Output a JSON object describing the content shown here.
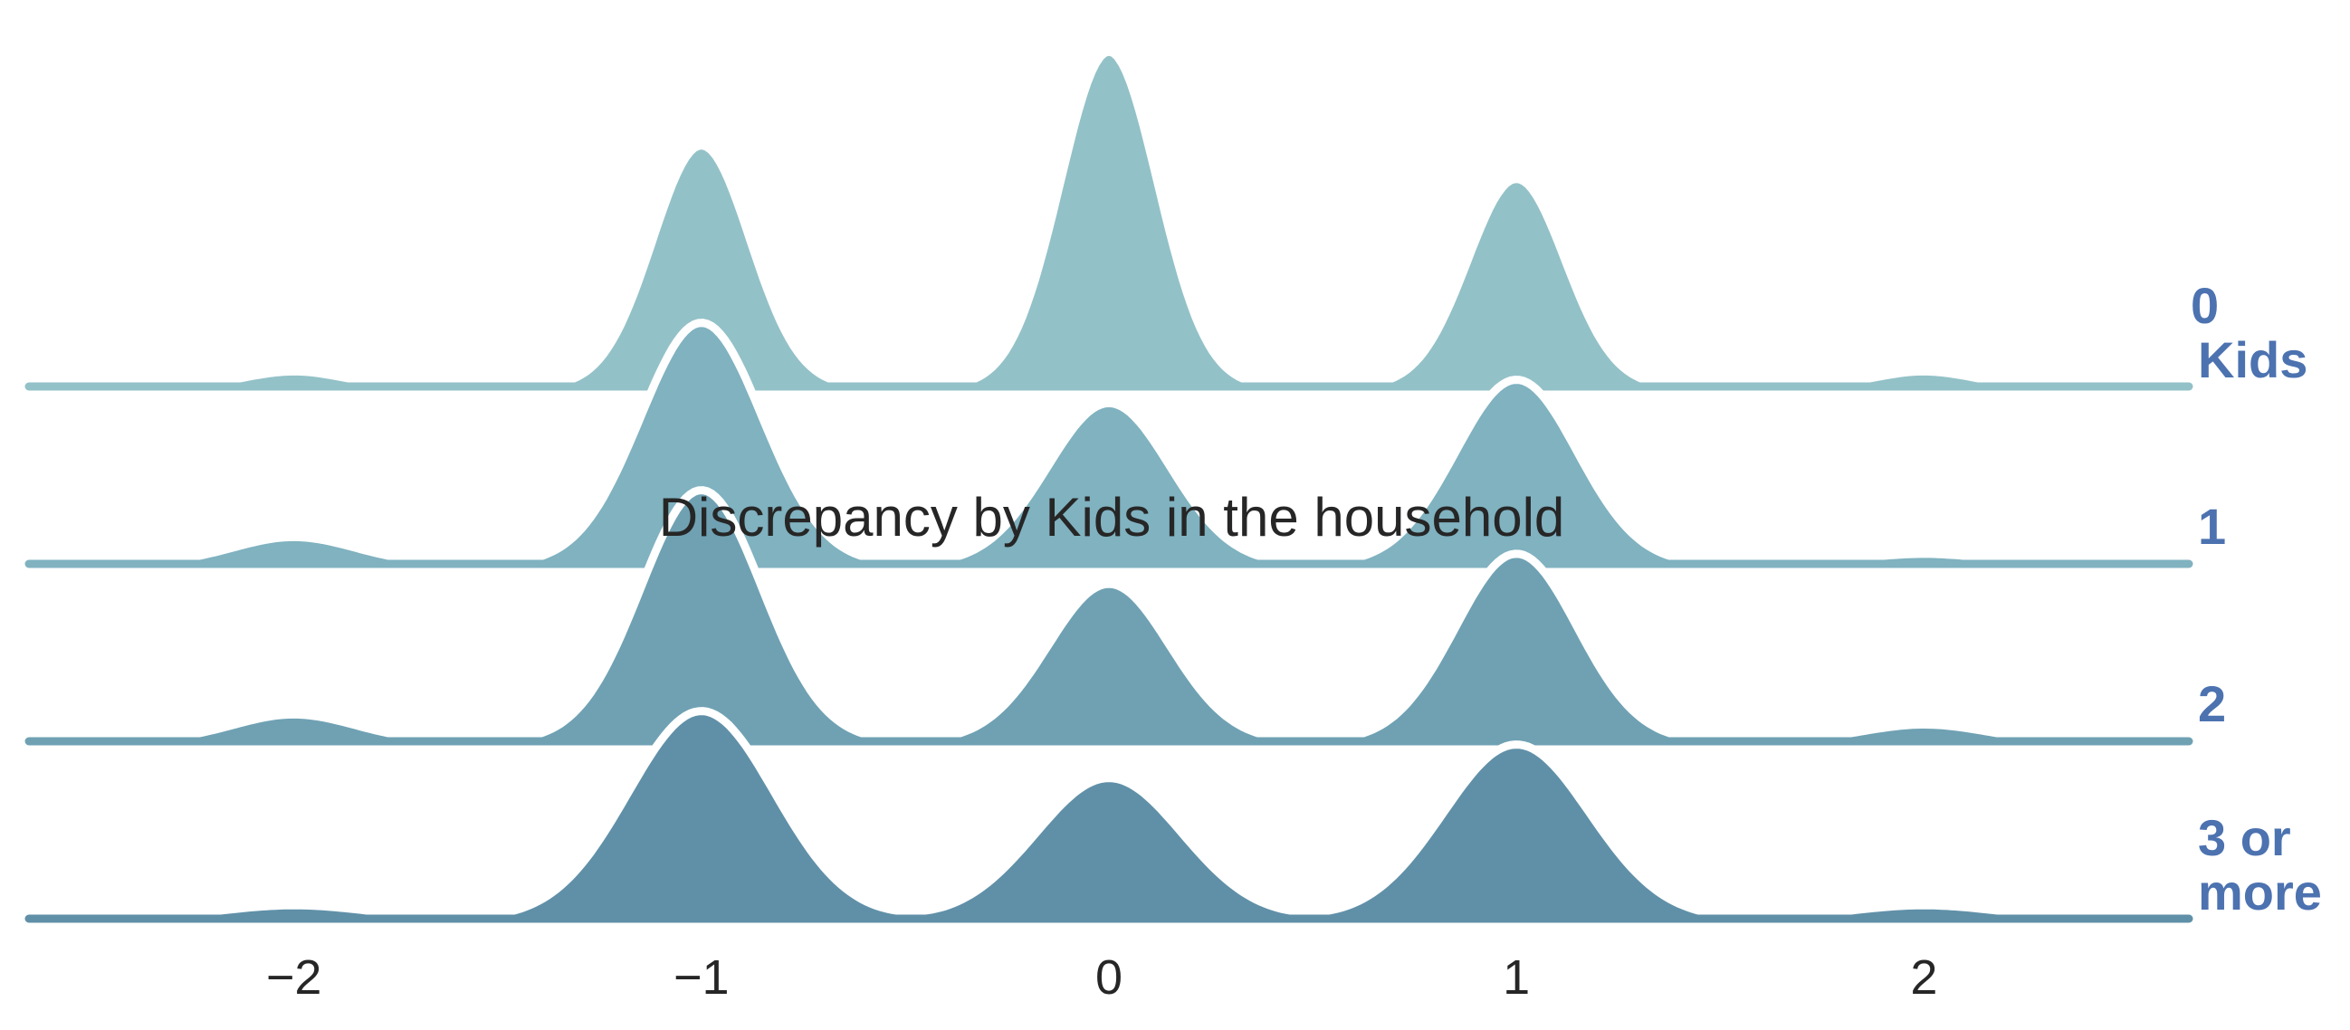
{
  "chart_data": {
    "type": "ridgeline",
    "title": "Discrepancy by Kids in the household",
    "xlabel": "",
    "ylabel": "",
    "xlim": [
      -2.65,
      2.65
    ],
    "x_ticks": [
      -2,
      -1,
      0,
      1,
      2
    ],
    "x_tick_labels": [
      "−2",
      "−1",
      "0",
      "1",
      "2"
    ],
    "grid": false,
    "series": [
      {
        "label_lines": [
          "0",
          "Kids"
        ],
        "color": "#93c1c8",
        "bandwidth": 0.12,
        "peaks": [
          {
            "x": -2,
            "density": 0.045
          },
          {
            "x": -1,
            "density": 0.72
          },
          {
            "x": 0,
            "density": 1.0
          },
          {
            "x": 1,
            "density": 0.62
          },
          {
            "x": 2,
            "density": 0.045
          }
        ]
      },
      {
        "label_lines": [
          "1"
        ],
        "color": "#80b2c0",
        "bandwidth": 0.15,
        "peaks": [
          {
            "x": -2,
            "density": 0.08
          },
          {
            "x": -1,
            "density": 0.72
          },
          {
            "x": 0,
            "density": 0.48
          },
          {
            "x": 1,
            "density": 0.55
          },
          {
            "x": 2,
            "density": 0.03
          }
        ]
      },
      {
        "label_lines": [
          "2"
        ],
        "color": "#6fa1b3",
        "bandwidth": 0.15,
        "peaks": [
          {
            "x": -2,
            "density": 0.08
          },
          {
            "x": -1,
            "density": 0.75
          },
          {
            "x": 0,
            "density": 0.47
          },
          {
            "x": 1,
            "density": 0.56
          },
          {
            "x": 2,
            "density": 0.05
          }
        ]
      },
      {
        "label_lines": [
          "3 or",
          "more"
        ],
        "color": "#6090a8",
        "bandwidth": 0.18,
        "peaks": [
          {
            "x": -2,
            "density": 0.04
          },
          {
            "x": -1,
            "density": 0.62
          },
          {
            "x": 0,
            "density": 0.42
          },
          {
            "x": 1,
            "density": 0.52
          },
          {
            "x": 2,
            "density": 0.04
          }
        ]
      }
    ]
  }
}
